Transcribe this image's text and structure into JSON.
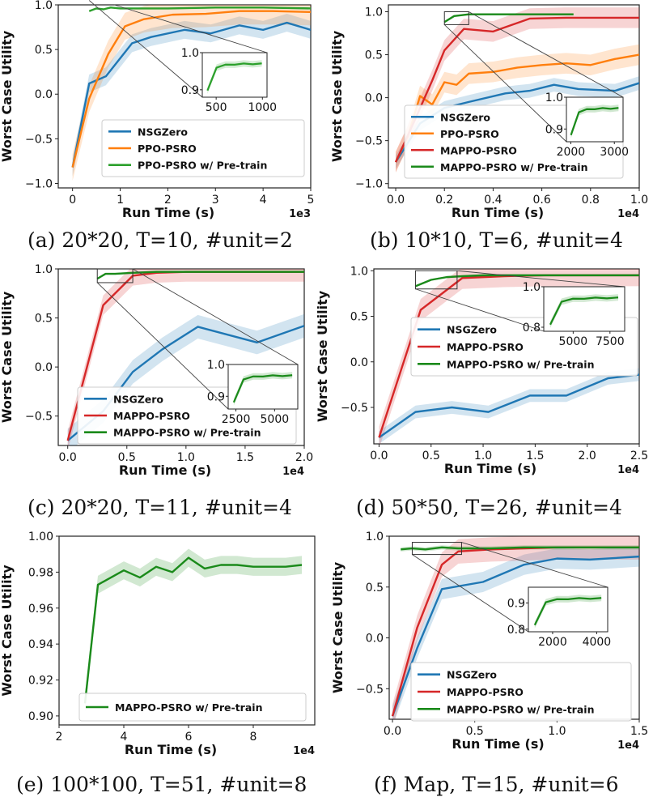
{
  "colors": {
    "NSGZero": "#1f77b4",
    "PPO-PSRO": "#ff7f0e",
    "PPO-PSRO w/ Pre-train": "#2ca02c",
    "MAPPO-PSRO": "#d62728",
    "MAPPO-PSRO w/ Pre-train": "#1a8a1a"
  },
  "chart_data": [
    {
      "type": "line",
      "id": "a",
      "caption": "(a)  20*20, T=10, #unit=2",
      "xlabel": "Run Time (s)",
      "ylabel": "Worst Case Utility",
      "multiplier": "1e3",
      "xlim": [
        -0.3,
        5.0
      ],
      "ylim": [
        -1.05,
        1.0
      ],
      "xticks": [
        0,
        1,
        2,
        3,
        4,
        5
      ],
      "xtick_labels": [
        "0",
        "1",
        "2",
        "3",
        "4",
        "5"
      ],
      "yticks": [
        -1.0,
        -0.5,
        0.0,
        0.5,
        1.0
      ],
      "ytick_labels": [
        "−1.0",
        "−0.5",
        "0.0",
        "0.5",
        "1.0"
      ],
      "series": [
        {
          "name": "NSGZero",
          "x": [
            0,
            0.35,
            0.7,
            1.25,
            1.65,
            2.35,
            2.9,
            3.5,
            4.0,
            4.5,
            5.0
          ],
          "y": [
            -0.82,
            0.12,
            0.2,
            0.57,
            0.64,
            0.72,
            0.68,
            0.77,
            0.72,
            0.8,
            0.72
          ],
          "band": 0.1
        },
        {
          "name": "PPO-PSRO",
          "x": [
            0,
            0.35,
            0.75,
            1.1,
            1.5,
            2.1,
            2.8,
            3.5,
            4.2,
            5.0
          ],
          "y": [
            -0.82,
            -0.05,
            0.45,
            0.76,
            0.84,
            0.89,
            0.9,
            0.93,
            0.93,
            0.92
          ],
          "band": 0.15
        },
        {
          "name": "PPO-PSRO w/ Pre-train",
          "x": [
            0.35,
            0.5,
            0.65,
            0.8,
            1.0,
            2.0,
            3.0,
            4.0,
            5.0
          ],
          "y": [
            0.93,
            0.96,
            0.95,
            0.97,
            0.96,
            0.96,
            0.97,
            0.97,
            0.96
          ],
          "band": 0.01
        }
      ],
      "legend": [
        "NSGZero",
        "PPO-PSRO",
        "PPO-PSRO w/ Pre-train"
      ],
      "legend_loc": "lower-right",
      "inset": {
        "xticks_labels": [
          "500",
          "1000"
        ],
        "yticks_labels": [
          "0.9",
          "1.0"
        ],
        "series": "PPO-PSRO w/ Pre-train"
      }
    },
    {
      "type": "line",
      "id": "b",
      "caption": "(b)  10*10, T=6, #unit=4",
      "xlabel": "Run Time (s)",
      "ylabel": "Worst Case Utility",
      "multiplier": "1e4",
      "xlim": [
        -0.03,
        1.0
      ],
      "ylim": [
        -1.05,
        1.08
      ],
      "xticks": [
        0,
        0.2,
        0.4,
        0.6,
        0.8,
        1.0
      ],
      "xtick_labels": [
        "0.0",
        "0.2",
        "0.4",
        "0.6",
        "0.8",
        "1.0"
      ],
      "yticks": [
        -1.0,
        -0.5,
        0.0,
        0.5,
        1.0
      ],
      "ytick_labels": [
        "−1.0",
        "−0.5",
        "0.0",
        "0.5",
        "1.0"
      ],
      "series": [
        {
          "name": "NSGZero",
          "x": [
            0,
            0.1,
            0.2,
            0.3,
            0.45,
            0.55,
            0.65,
            0.75,
            0.9,
            1.0
          ],
          "y": [
            -0.75,
            -0.3,
            -0.12,
            -0.05,
            0.05,
            0.08,
            0.15,
            0.1,
            0.08,
            0.17
          ],
          "band": 0.08
        },
        {
          "name": "PPO-PSRO",
          "x": [
            0,
            0.05,
            0.1,
            0.15,
            0.2,
            0.25,
            0.3,
            0.4,
            0.5,
            0.6,
            0.7,
            0.8,
            0.9,
            1.0
          ],
          "y": [
            -0.75,
            -0.45,
            0.02,
            -0.08,
            0.18,
            0.15,
            0.28,
            0.3,
            0.35,
            0.38,
            0.4,
            0.38,
            0.45,
            0.5
          ],
          "band": 0.12
        },
        {
          "name": "MAPPO-PSRO",
          "x": [
            0,
            0.08,
            0.15,
            0.2,
            0.28,
            0.4,
            0.55,
            0.7,
            0.85,
            1.0
          ],
          "y": [
            -0.75,
            -0.25,
            0.2,
            0.55,
            0.8,
            0.77,
            0.92,
            0.93,
            0.93,
            0.93
          ],
          "band": 0.12
        },
        {
          "name": "MAPPO-PSRO w/ Pre-train",
          "x": [
            0.2,
            0.24,
            0.3,
            0.4,
            0.5,
            0.6,
            0.73
          ],
          "y": [
            0.88,
            0.95,
            0.97,
            0.97,
            0.97,
            0.97,
            0.97
          ],
          "band": 0.01
        }
      ],
      "legend": [
        "NSGZero",
        "PPO-PSRO",
        "MAPPO-PSRO",
        "MAPPO-PSRO w/ Pre-train"
      ],
      "legend_loc": "lower-left",
      "inset": {
        "xticks_labels": [
          "2000",
          "3000"
        ],
        "yticks_labels": [
          "0.9",
          "1.0"
        ],
        "series": "MAPPO-PSRO w/ Pre-train"
      }
    },
    {
      "type": "line",
      "id": "c",
      "caption": "(c)  20*20, T=11, #unit=4",
      "xlabel": "Run Time (s)",
      "ylabel": "Worst Case Utility",
      "multiplier": "1e4",
      "xlim": [
        -0.08,
        2.0
      ],
      "ylim": [
        -0.8,
        1.0
      ],
      "xticks": [
        0,
        0.5,
        1.0,
        1.5,
        2.0
      ],
      "xtick_labels": [
        "0.0",
        "0.5",
        "1.0",
        "1.5",
        "2.0"
      ],
      "yticks": [
        -0.5,
        0.0,
        0.5,
        1.0
      ],
      "ytick_labels": [
        "−0.5",
        "0.0",
        "0.5",
        "1.0"
      ],
      "series": [
        {
          "name": "NSGZero",
          "x": [
            0,
            0.3,
            0.55,
            0.8,
            1.1,
            1.6,
            2.0
          ],
          "y": [
            -0.75,
            -0.45,
            -0.05,
            0.18,
            0.41,
            0.25,
            0.42
          ],
          "band": 0.12
        },
        {
          "name": "MAPPO-PSRO",
          "x": [
            0,
            0.3,
            0.55,
            0.75,
            1.0,
            1.5,
            2.0
          ],
          "y": [
            -0.75,
            0.63,
            0.93,
            0.96,
            0.97,
            0.97,
            0.97
          ],
          "band": 0.1
        },
        {
          "name": "MAPPO-PSRO w/ Pre-train",
          "x": [
            0.25,
            0.32,
            0.4,
            0.55,
            0.75,
            1.0,
            1.5,
            2.0
          ],
          "y": [
            0.9,
            0.95,
            0.95,
            0.96,
            0.97,
            0.97,
            0.97,
            0.97
          ],
          "band": 0.01
        }
      ],
      "legend": [
        "NSGZero",
        "MAPPO-PSRO",
        "MAPPO-PSRO w/ Pre-train"
      ],
      "legend_loc": "lower-left",
      "inset": {
        "xticks_labels": [
          "2500",
          "5000"
        ],
        "yticks_labels": [
          "0.9",
          "1.0"
        ],
        "series": "MAPPO-PSRO w/ Pre-train"
      }
    },
    {
      "type": "line",
      "id": "d",
      "caption": "(d)  50*50, T=26, #unit=4",
      "xlabel": "Run Time (s)",
      "ylabel": "Worst Case Utility",
      "multiplier": "1e4",
      "xlim": [
        -0.05,
        2.5
      ],
      "ylim": [
        -0.9,
        1.02
      ],
      "xticks": [
        0,
        0.5,
        1.0,
        1.5,
        2.0,
        2.5
      ],
      "xtick_labels": [
        "0.0",
        "0.5",
        "1.0",
        "1.5",
        "2.0",
        "2.5"
      ],
      "yticks": [
        -0.5,
        0.0,
        0.5,
        1.0
      ],
      "ytick_labels": [
        "−0.5",
        "0.0",
        "0.5",
        "1.0"
      ],
      "series": [
        {
          "name": "NSGZero",
          "x": [
            0,
            0.35,
            0.7,
            1.05,
            1.45,
            1.8,
            2.2,
            2.5
          ],
          "y": [
            -0.83,
            -0.55,
            -0.5,
            -0.55,
            -0.37,
            -0.37,
            -0.18,
            -0.14
          ],
          "band": 0.07
        },
        {
          "name": "MAPPO-PSRO",
          "x": [
            0,
            0.4,
            0.8,
            1.2,
            1.6,
            2.0,
            2.5
          ],
          "y": [
            -0.83,
            0.57,
            0.92,
            0.94,
            0.95,
            0.95,
            0.95
          ],
          "band": 0.12
        },
        {
          "name": "MAPPO-PSRO w/ Pre-train",
          "x": [
            0.35,
            0.5,
            0.65,
            0.8,
            1.0,
            1.5,
            2.0,
            2.5
          ],
          "y": [
            0.83,
            0.9,
            0.93,
            0.94,
            0.95,
            0.95,
            0.95,
            0.95
          ],
          "band": 0.01
        }
      ],
      "legend": [
        "NSGZero",
        "MAPPO-PSRO",
        "MAPPO-PSRO w/ Pre-train"
      ],
      "legend_loc": "center-right",
      "inset": {
        "xticks_labels": [
          "5000",
          "7500"
        ],
        "yticks_labels": [
          "0.8",
          "1.0"
        ],
        "series": "MAPPO-PSRO w/ Pre-train"
      }
    },
    {
      "type": "line",
      "id": "e",
      "caption": "(e)  100*100, T=51, #unit=8",
      "xlabel": "Run Time (s)",
      "ylabel": "Worst Case Utility",
      "multiplier": "1e4",
      "xlim": [
        2.0,
        9.9
      ],
      "ylim": [
        0.895,
        1.0
      ],
      "xticks": [
        2,
        4,
        6,
        8
      ],
      "xtick_labels": [
        "2",
        "4",
        "6",
        "8"
      ],
      "yticks": [
        0.9,
        0.92,
        0.94,
        0.96,
        0.98,
        1.0
      ],
      "ytick_labels": [
        "0.90",
        "0.92",
        "0.94",
        "0.96",
        "0.98",
        "1.00"
      ],
      "series": [
        {
          "name": "MAPPO-PSRO w/ Pre-train",
          "x": [
            2.8,
            3.2,
            4.0,
            4.5,
            5.0,
            5.5,
            6.0,
            6.5,
            7.0,
            7.5,
            8.0,
            8.5,
            9.0,
            9.5
          ],
          "y": [
            0.907,
            0.973,
            0.981,
            0.977,
            0.983,
            0.98,
            0.988,
            0.982,
            0.984,
            0.984,
            0.983,
            0.983,
            0.983,
            0.984
          ],
          "band": 0.005
        }
      ],
      "legend": [
        "MAPPO-PSRO w/ Pre-train"
      ],
      "legend_loc": "lower-right"
    },
    {
      "type": "line",
      "id": "f",
      "caption": "(f)  Map, T=15, #unit=6",
      "xlabel": "Run Time (s)",
      "ylabel": "Worst Case Utility",
      "multiplier": "1e4",
      "xlim": [
        -0.02,
        1.5
      ],
      "ylim": [
        -0.8,
        1.0
      ],
      "xticks": [
        0,
        0.5,
        1.0,
        1.5
      ],
      "xtick_labels": [
        "0.0",
        "0.5",
        "1.0",
        "1.5"
      ],
      "yticks": [
        -0.5,
        0.0,
        0.5,
        1.0
      ],
      "ytick_labels": [
        "−0.5",
        "0.0",
        "0.5",
        "1.0"
      ],
      "series": [
        {
          "name": "NSGZero",
          "x": [
            0,
            0.15,
            0.3,
            0.55,
            0.8,
            1.0,
            1.2,
            1.5
          ],
          "y": [
            -0.77,
            -0.1,
            0.48,
            0.55,
            0.72,
            0.78,
            0.77,
            0.8
          ],
          "band": 0.1
        },
        {
          "name": "MAPPO-PSRO",
          "x": [
            0,
            0.15,
            0.3,
            0.4,
            0.6,
            0.8,
            1.0,
            1.5
          ],
          "y": [
            -0.77,
            0.1,
            0.72,
            0.85,
            0.87,
            0.88,
            0.89,
            0.89
          ],
          "band": 0.12
        },
        {
          "name": "MAPPO-PSRO w/ Pre-train",
          "x": [
            0.05,
            0.12,
            0.2,
            0.3,
            0.4,
            0.6,
            0.8,
            1.0,
            1.5
          ],
          "y": [
            0.87,
            0.88,
            0.87,
            0.89,
            0.88,
            0.88,
            0.89,
            0.89,
            0.89
          ],
          "band": 0.02
        }
      ],
      "legend": [
        "NSGZero",
        "MAPPO-PSRO",
        "MAPPO-PSRO w/ Pre-train"
      ],
      "legend_loc": "lower-right",
      "inset": {
        "xticks_labels": [
          "2000",
          "4000"
        ],
        "yticks_labels": [
          "0.8",
          "0.9"
        ],
        "series": "MAPPO-PSRO w/ Pre-train"
      }
    }
  ]
}
